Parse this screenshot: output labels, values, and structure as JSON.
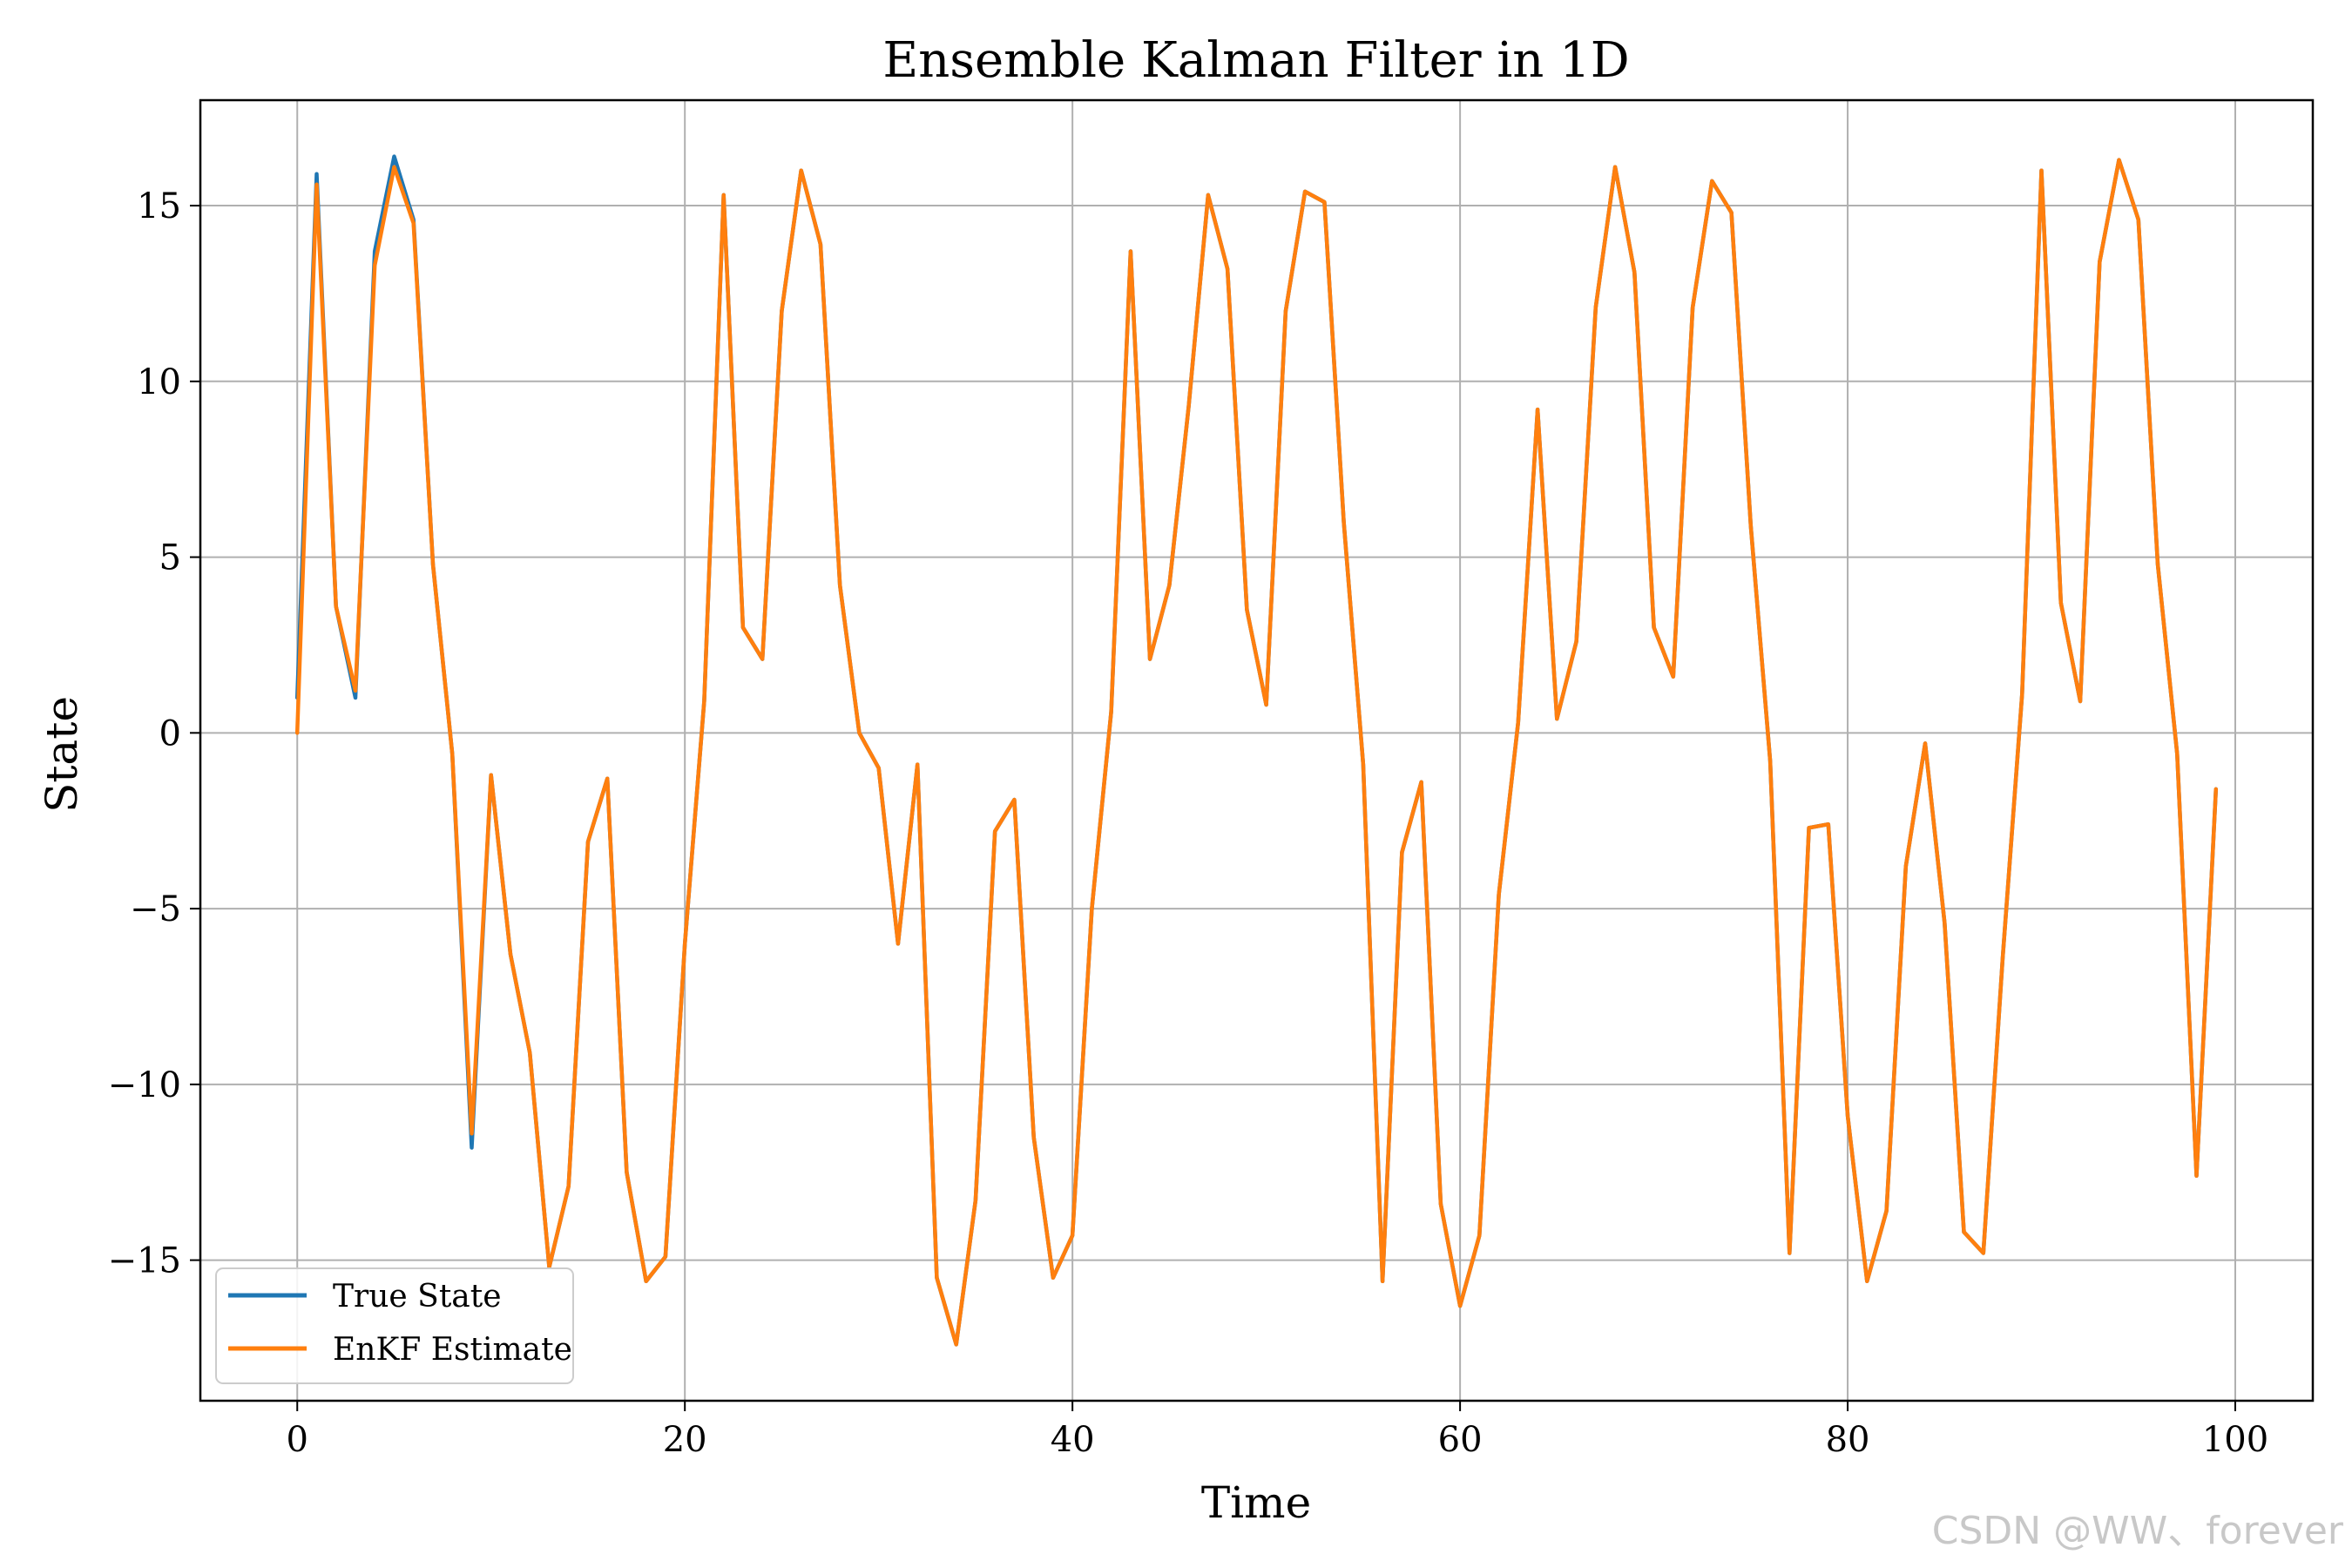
{
  "chart_data": {
    "type": "line",
    "title": "Ensemble Kalman Filter in 1D",
    "xlabel": "Time",
    "ylabel": "State",
    "xlim": [
      -5,
      104
    ],
    "ylim": [
      -19,
      18
    ],
    "xticks": [
      0,
      20,
      40,
      60,
      80,
      100
    ],
    "yticks": [
      -15,
      -10,
      -5,
      0,
      5,
      10,
      15
    ],
    "grid": true,
    "legend_position": "lower-left",
    "series": [
      {
        "name": "True State",
        "color": "#1f77b4",
        "values": [
          1.0,
          15.9,
          3.6,
          1.0,
          13.7,
          16.4,
          14.6,
          4.8,
          -0.6,
          -11.8,
          -1.2,
          -6.3,
          -9.1,
          -15.2,
          -12.9,
          -3.1,
          -1.3,
          -12.5,
          -15.6,
          -14.9,
          -6.0,
          0.9,
          15.3,
          3.0,
          2.1,
          12.0,
          16.0,
          13.9,
          4.2,
          0.0,
          -1.0,
          -6.0,
          -0.9,
          -15.5,
          -17.4,
          -13.3,
          -2.8,
          -1.9,
          -11.5,
          -15.5,
          -14.3,
          -5.0,
          0.6,
          13.7,
          2.1,
          4.2,
          9.3,
          15.3,
          13.2,
          3.5,
          0.8,
          12.0,
          15.4,
          15.1,
          6.0,
          -0.9,
          -15.6,
          -3.4,
          -1.4,
          -13.4,
          -16.3,
          -14.3,
          -4.6,
          0.3,
          9.2,
          0.4,
          2.6,
          12.1,
          16.1,
          13.1,
          3.0,
          1.6,
          12.1,
          15.7,
          14.8,
          5.9,
          -0.8,
          -14.8,
          -2.7,
          -2.6,
          -10.9,
          -15.6,
          -13.6,
          -3.8,
          -0.3,
          -5.4,
          -14.2,
          -14.8,
          -6.4,
          1.1,
          16.0,
          3.7,
          0.9,
          13.4,
          16.3,
          14.6,
          4.8,
          -0.6,
          -12.6,
          -1.6
        ]
      },
      {
        "name": "EnKF Estimate",
        "color": "#ff7f0e",
        "values": [
          0.0,
          15.6,
          3.6,
          1.2,
          13.3,
          16.1,
          14.5,
          4.8,
          -0.6,
          -11.4,
          -1.2,
          -6.3,
          -9.1,
          -15.2,
          -12.9,
          -3.1,
          -1.3,
          -12.5,
          -15.6,
          -14.9,
          -6.0,
          0.9,
          15.3,
          3.0,
          2.1,
          12.0,
          16.0,
          13.9,
          4.2,
          0.0,
          -1.0,
          -6.0,
          -0.9,
          -15.5,
          -17.4,
          -13.3,
          -2.8,
          -1.9,
          -11.5,
          -15.5,
          -14.3,
          -5.0,
          0.6,
          13.7,
          2.1,
          4.2,
          9.3,
          15.3,
          13.2,
          3.5,
          0.8,
          12.0,
          15.4,
          15.1,
          6.0,
          -0.9,
          -15.6,
          -3.4,
          -1.4,
          -13.4,
          -16.3,
          -14.3,
          -4.6,
          0.3,
          9.2,
          0.4,
          2.6,
          12.1,
          16.1,
          13.1,
          3.0,
          1.6,
          12.1,
          15.7,
          14.8,
          5.9,
          -0.8,
          -14.8,
          -2.7,
          -2.6,
          -10.9,
          -15.6,
          -13.6,
          -3.8,
          -0.3,
          -5.4,
          -14.2,
          -14.8,
          -6.4,
          1.1,
          16.0,
          3.7,
          0.9,
          13.4,
          16.3,
          14.6,
          4.8,
          -0.6,
          -12.6,
          -1.6
        ]
      }
    ]
  },
  "watermark": "CSDN @WW、forever"
}
